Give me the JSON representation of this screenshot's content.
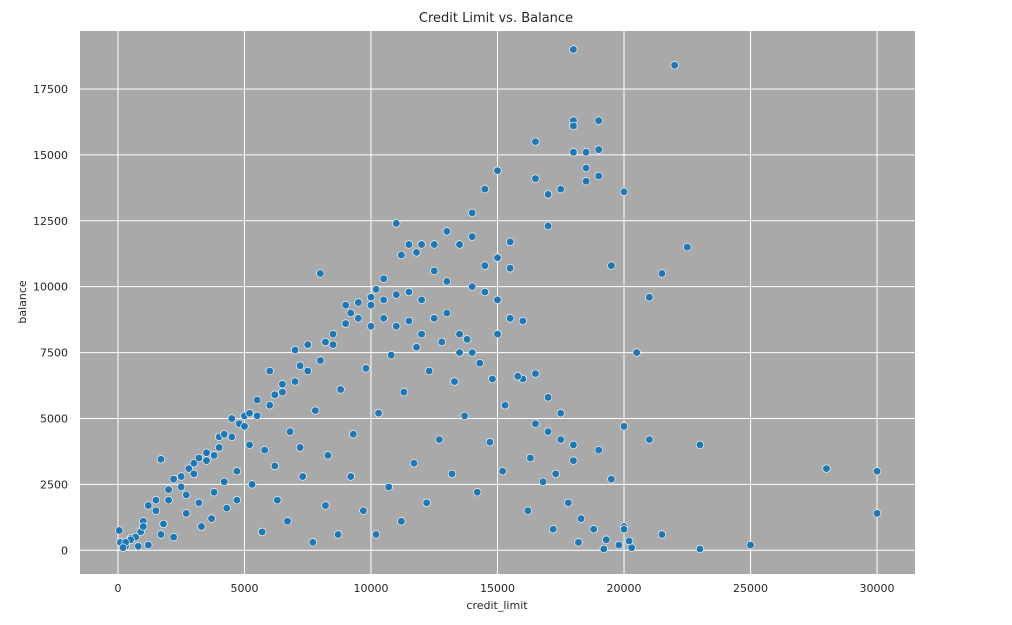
{
  "colors": {
    "plot_background": "#a9a9a9",
    "grid": "#ffffff",
    "point_fill": "#1f77b4",
    "point_edge": "#ffffff"
  },
  "chart_data": {
    "type": "scatter",
    "title": "Credit Limit vs. Balance",
    "xlabel": "credit_limit",
    "ylabel": "balance",
    "xlim": [
      -1500,
      31500
    ],
    "ylim": [
      -900,
      19700
    ],
    "xticks": [
      0,
      5000,
      10000,
      15000,
      20000,
      25000,
      30000
    ],
    "yticks": [
      0,
      2500,
      5000,
      7500,
      10000,
      12500,
      15000,
      17500
    ],
    "xtick_labels": [
      "0",
      "5000",
      "10000",
      "15000",
      "20000",
      "25000",
      "30000"
    ],
    "ytick_labels": [
      "0",
      "2500",
      "5000",
      "7500",
      "10000",
      "12500",
      "15000",
      "17500"
    ],
    "grid": true,
    "legend": "none",
    "series": [
      {
        "points": [
          [
            50,
            750
          ],
          [
            100,
            300
          ],
          [
            300,
            150
          ],
          [
            500,
            450
          ],
          [
            700,
            500
          ],
          [
            900,
            700
          ],
          [
            1000,
            1100
          ],
          [
            1200,
            1700
          ],
          [
            1500,
            1900
          ],
          [
            1700,
            3450
          ],
          [
            2000,
            2300
          ],
          [
            2200,
            2700
          ],
          [
            2500,
            2800
          ],
          [
            2800,
            3100
          ],
          [
            3000,
            3300
          ],
          [
            3200,
            3500
          ],
          [
            3500,
            3700
          ],
          [
            3800,
            3600
          ],
          [
            4000,
            4300
          ],
          [
            4200,
            4400
          ],
          [
            4500,
            5000
          ],
          [
            4800,
            4800
          ],
          [
            5000,
            5100
          ],
          [
            5200,
            5200
          ],
          [
            5500,
            5700
          ],
          [
            6000,
            6800
          ],
          [
            6200,
            5900
          ],
          [
            6500,
            6300
          ],
          [
            7000,
            7600
          ],
          [
            7200,
            7000
          ],
          [
            7500,
            7800
          ],
          [
            8000,
            10500
          ],
          [
            8200,
            7900
          ],
          [
            8500,
            8200
          ],
          [
            9000,
            9300
          ],
          [
            9200,
            9000
          ],
          [
            9500,
            9400
          ],
          [
            10000,
            9600
          ],
          [
            10200,
            9900
          ],
          [
            10500,
            10300
          ],
          [
            11000,
            12400
          ],
          [
            11200,
            11200
          ],
          [
            11500,
            11600
          ],
          [
            11800,
            11300
          ],
          [
            12000,
            11600
          ],
          [
            12500,
            11600
          ],
          [
            13000,
            12100
          ],
          [
            13500,
            11600
          ],
          [
            14000,
            12800
          ],
          [
            14000,
            11900
          ],
          [
            14500,
            13700
          ],
          [
            15000,
            14400
          ],
          [
            15000,
            11100
          ],
          [
            15500,
            11700
          ],
          [
            16500,
            15500
          ],
          [
            16500,
            14100
          ],
          [
            17000,
            13500
          ],
          [
            17000,
            12300
          ],
          [
            17500,
            13700
          ],
          [
            18000,
            19000
          ],
          [
            18000,
            16300
          ],
          [
            18000,
            16100
          ],
          [
            18000,
            15100
          ],
          [
            18500,
            15100
          ],
          [
            18500,
            14500
          ],
          [
            18500,
            14000
          ],
          [
            19000,
            16300
          ],
          [
            19000,
            15200
          ],
          [
            19000,
            14200
          ],
          [
            19500,
            10800
          ],
          [
            20000,
            13600
          ],
          [
            20500,
            7500
          ],
          [
            21000,
            9600
          ],
          [
            21500,
            10500
          ],
          [
            22000,
            18400
          ],
          [
            22500,
            11500
          ],
          [
            21000,
            4200
          ],
          [
            23000,
            4000
          ],
          [
            20000,
            4700
          ],
          [
            28000,
            3100
          ],
          [
            30000,
            3000
          ],
          [
            30000,
            1400
          ],
          [
            25000,
            200
          ],
          [
            23000,
            50
          ],
          [
            21500,
            600
          ],
          [
            20000,
            900
          ],
          [
            20000,
            800
          ],
          [
            19500,
            2700
          ],
          [
            19000,
            3800
          ],
          [
            18000,
            4000
          ],
          [
            18000,
            3400
          ],
          [
            17500,
            4200
          ],
          [
            17500,
            5200
          ],
          [
            17000,
            4500
          ],
          [
            17000,
            5800
          ],
          [
            16500,
            4800
          ],
          [
            16500,
            6700
          ],
          [
            16000,
            6500
          ],
          [
            16000,
            8700
          ],
          [
            15500,
            8800
          ],
          [
            15500,
            10700
          ],
          [
            15000,
            9500
          ],
          [
            15000,
            8200
          ],
          [
            14500,
            9800
          ],
          [
            14500,
            10800
          ],
          [
            14000,
            10000
          ],
          [
            14000,
            7500
          ],
          [
            13500,
            7500
          ],
          [
            13500,
            8200
          ],
          [
            13000,
            10200
          ],
          [
            13000,
            9000
          ],
          [
            12500,
            10600
          ],
          [
            12500,
            8800
          ],
          [
            12000,
            9500
          ],
          [
            12000,
            8200
          ],
          [
            11500,
            9800
          ],
          [
            11500,
            8700
          ],
          [
            11000,
            9700
          ],
          [
            11000,
            8500
          ],
          [
            10500,
            9500
          ],
          [
            10500,
            8800
          ],
          [
            10000,
            9300
          ],
          [
            10000,
            8500
          ],
          [
            9500,
            8800
          ],
          [
            9000,
            8600
          ],
          [
            8500,
            7800
          ],
          [
            8000,
            7200
          ],
          [
            7500,
            6800
          ],
          [
            7000,
            6400
          ],
          [
            6500,
            6000
          ],
          [
            6000,
            5500
          ],
          [
            5500,
            5100
          ],
          [
            5000,
            4700
          ],
          [
            4500,
            4300
          ],
          [
            4000,
            3900
          ],
          [
            3500,
            3400
          ],
          [
            3000,
            2900
          ],
          [
            2500,
            2400
          ],
          [
            2000,
            1900
          ],
          [
            1500,
            1500
          ],
          [
            1000,
            900
          ],
          [
            500,
            400
          ],
          [
            300,
            300
          ],
          [
            200,
            100
          ],
          [
            1200,
            200
          ],
          [
            1800,
            1000
          ],
          [
            2200,
            500
          ],
          [
            2700,
            1400
          ],
          [
            3300,
            900
          ],
          [
            3800,
            2200
          ],
          [
            4300,
            1600
          ],
          [
            4700,
            3000
          ],
          [
            5300,
            2500
          ],
          [
            5800,
            3800
          ],
          [
            6300,
            1900
          ],
          [
            6800,
            4500
          ],
          [
            7300,
            2800
          ],
          [
            7800,
            5300
          ],
          [
            8300,
            3600
          ],
          [
            8800,
            6100
          ],
          [
            9300,
            4400
          ],
          [
            9800,
            6900
          ],
          [
            10300,
            5200
          ],
          [
            10800,
            7400
          ],
          [
            11300,
            6000
          ],
          [
            11800,
            7700
          ],
          [
            12300,
            6800
          ],
          [
            12800,
            7900
          ],
          [
            13300,
            6400
          ],
          [
            13800,
            8000
          ],
          [
            14300,
            7100
          ],
          [
            14800,
            6500
          ],
          [
            15300,
            5500
          ],
          [
            15800,
            6600
          ],
          [
            16300,
            3500
          ],
          [
            16800,
            2600
          ],
          [
            17300,
            2900
          ],
          [
            17800,
            1800
          ],
          [
            18300,
            1200
          ],
          [
            18800,
            800
          ],
          [
            19300,
            400
          ],
          [
            19800,
            200
          ],
          [
            20300,
            100
          ],
          [
            14700,
            4100
          ],
          [
            13700,
            5100
          ],
          [
            12700,
            4200
          ],
          [
            11700,
            3300
          ],
          [
            10700,
            2400
          ],
          [
            9700,
            1500
          ],
          [
            8700,
            600
          ],
          [
            7700,
            300
          ],
          [
            6700,
            1100
          ],
          [
            5700,
            700
          ],
          [
            4700,
            1900
          ],
          [
            3700,
            1200
          ],
          [
            2700,
            2100
          ],
          [
            1700,
            600
          ],
          [
            800,
            150
          ],
          [
            15200,
            3000
          ],
          [
            16200,
            1500
          ],
          [
            17200,
            800
          ],
          [
            18200,
            300
          ],
          [
            19200,
            50
          ],
          [
            20200,
            350
          ],
          [
            14200,
            2200
          ],
          [
            13200,
            2900
          ],
          [
            12200,
            1800
          ],
          [
            11200,
            1100
          ],
          [
            10200,
            600
          ],
          [
            9200,
            2800
          ],
          [
            8200,
            1700
          ],
          [
            7200,
            3900
          ],
          [
            6200,
            3200
          ],
          [
            5200,
            4000
          ],
          [
            4200,
            2600
          ],
          [
            3200,
            1800
          ]
        ]
      }
    ]
  }
}
